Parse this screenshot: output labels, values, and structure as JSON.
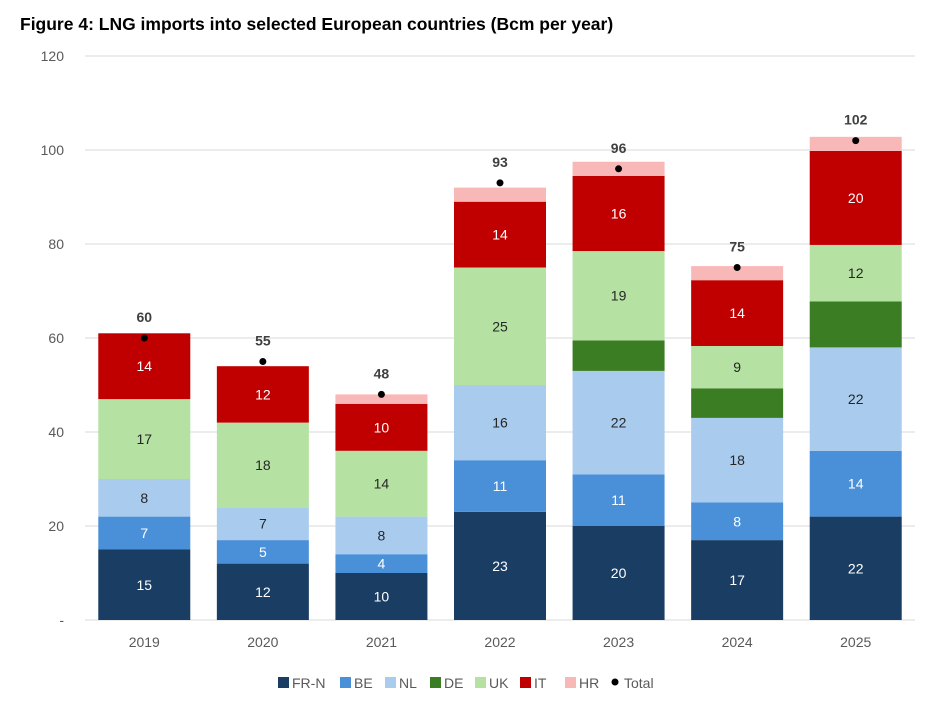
{
  "chart_data": {
    "type": "bar",
    "stacked": true,
    "title": "Figure 4: LNG imports into selected European countries (Bcm per year)",
    "xlabel": "",
    "ylabel": "",
    "categories": [
      "2019",
      "2020",
      "2021",
      "2022",
      "2023",
      "2024",
      "2025"
    ],
    "ylim": [
      0,
      120
    ],
    "yticks": [
      0,
      20,
      40,
      60,
      80,
      100,
      120
    ],
    "ytick_labels": [
      "-",
      "20",
      "40",
      "60",
      "80",
      "100",
      "120"
    ],
    "grid": true,
    "legend_position": "bottom",
    "series": [
      {
        "name": "FR-N",
        "color": "#1a3d63",
        "label_color": "#ffffff",
        "show_labels": true,
        "values": [
          15,
          12,
          10,
          23,
          20,
          17,
          22
        ]
      },
      {
        "name": "BE",
        "color": "#4a90d9",
        "label_color": "#ffffff",
        "show_labels": true,
        "values": [
          7,
          5,
          4,
          11,
          11,
          8,
          14
        ]
      },
      {
        "name": "NL",
        "color": "#a9cbee",
        "label_color": "#262626",
        "show_labels": true,
        "values": [
          8,
          7,
          8,
          16,
          22,
          18,
          22
        ]
      },
      {
        "name": "DE",
        "color": "#3a7d23",
        "label_color": "#ffffff",
        "show_labels": false,
        "values": [
          0,
          0,
          0,
          0,
          6.5,
          6.3,
          9.8
        ]
      },
      {
        "name": "UK",
        "color": "#b5e2a2",
        "label_color": "#262626",
        "show_labels": true,
        "values": [
          17,
          18,
          14,
          25,
          19,
          9,
          12
        ]
      },
      {
        "name": "IT",
        "color": "#c00000",
        "label_color": "#ffffff",
        "show_labels": true,
        "values": [
          14,
          12,
          10,
          14,
          16,
          14,
          20
        ]
      },
      {
        "name": "HR",
        "color": "#f9b8b8",
        "label_color": "#262626",
        "show_labels": false,
        "values": [
          0,
          0,
          2,
          3,
          3,
          3,
          3
        ]
      }
    ],
    "total": {
      "name": "Total",
      "color": "#000000",
      "values": [
        60,
        55,
        48,
        93,
        96,
        75,
        102
      ]
    }
  }
}
